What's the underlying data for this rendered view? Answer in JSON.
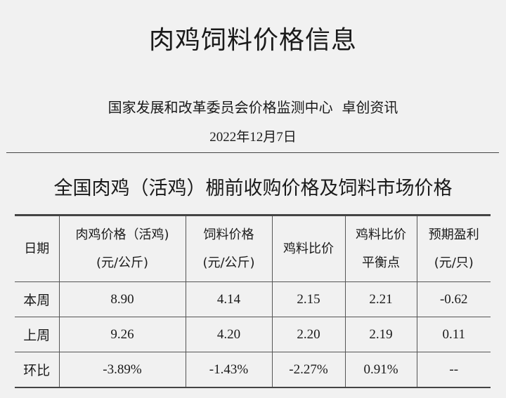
{
  "title": "肉鸡饲料价格信息",
  "source": "国家发展和改革委员会价格监测中心  卓创资讯",
  "date": "2022年12月7日",
  "table": {
    "title": "全国肉鸡（活鸡）棚前收购价格及饲料市场价格",
    "headers": [
      {
        "l1": "日期",
        "l2": ""
      },
      {
        "l1": "肉鸡价格（活鸡)",
        "l2": "(元/公斤)"
      },
      {
        "l1": "饲料价格",
        "l2": "(元/公斤)"
      },
      {
        "l1": "鸡料比价",
        "l2": ""
      },
      {
        "l1": "鸡料比价",
        "l2": "平衡点"
      },
      {
        "l1": "预期盈利",
        "l2": "(元/只)"
      }
    ],
    "rows": [
      [
        "本周",
        "8.90",
        "4.14",
        "2.15",
        "2.21",
        "-0.62"
      ],
      [
        "上周",
        "9.26",
        "4.20",
        "2.20",
        "2.19",
        "0.11"
      ],
      [
        "环比",
        "-3.89%",
        "-1.43%",
        "-2.27%",
        "0.91%",
        "--"
      ]
    ]
  }
}
